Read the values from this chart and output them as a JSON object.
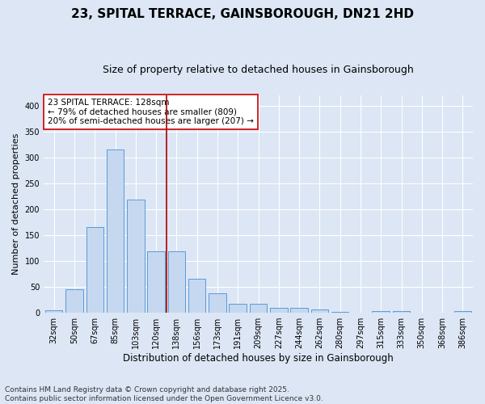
{
  "title": "23, SPITAL TERRACE, GAINSBOROUGH, DN21 2HD",
  "subtitle": "Size of property relative to detached houses in Gainsborough",
  "xlabel": "Distribution of detached houses by size in Gainsborough",
  "ylabel": "Number of detached properties",
  "categories": [
    "32sqm",
    "50sqm",
    "67sqm",
    "85sqm",
    "103sqm",
    "120sqm",
    "138sqm",
    "156sqm",
    "173sqm",
    "191sqm",
    "209sqm",
    "227sqm",
    "244sqm",
    "262sqm",
    "280sqm",
    "297sqm",
    "315sqm",
    "333sqm",
    "350sqm",
    "368sqm",
    "386sqm"
  ],
  "values": [
    5,
    46,
    165,
    315,
    218,
    119,
    119,
    65,
    38,
    17,
    17,
    10,
    10,
    7,
    2,
    0,
    4,
    4,
    0,
    0,
    3
  ],
  "bar_color": "#c5d8f0",
  "bar_edge_color": "#5b9bd5",
  "vline_x": 5.5,
  "vline_color": "#aa0000",
  "annotation_title": "23 SPITAL TERRACE: 128sqm",
  "annotation_line1": "← 79% of detached houses are smaller (809)",
  "annotation_line2": "20% of semi-detached houses are larger (207) →",
  "annotation_box_color": "#ffffff",
  "annotation_box_edge": "#cc0000",
  "ylim": [
    0,
    420
  ],
  "yticks": [
    0,
    50,
    100,
    150,
    200,
    250,
    300,
    350,
    400
  ],
  "background_color": "#dce6f5",
  "plot_bg_color": "#dce6f5",
  "footer": "Contains HM Land Registry data © Crown copyright and database right 2025.\nContains public sector information licensed under the Open Government Licence v3.0.",
  "title_fontsize": 11,
  "subtitle_fontsize": 9,
  "xlabel_fontsize": 8.5,
  "ylabel_fontsize": 8,
  "tick_fontsize": 7,
  "annotation_fontsize": 7.5,
  "footer_fontsize": 6.5
}
